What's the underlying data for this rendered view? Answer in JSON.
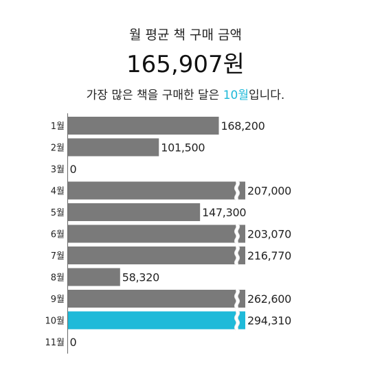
{
  "header": {
    "title": "월 평균 책 구매 금액",
    "average": "165,907원",
    "summary_before": "가장 많은 책을 구매한 달은 ",
    "summary_highlight": "10월",
    "summary_after": "입니다."
  },
  "colors": {
    "bar": "#7a7a7a",
    "highlight": "#1fbad9",
    "axis": "#666666",
    "text": "#222222"
  },
  "chart_data": {
    "type": "bar",
    "orientation": "horizontal",
    "categories": [
      "1월",
      "2월",
      "3월",
      "4월",
      "5월",
      "6월",
      "7월",
      "8월",
      "9월",
      "10월",
      "11월"
    ],
    "values": [
      168200,
      101500,
      0,
      207000,
      147300,
      203070,
      216770,
      58320,
      262600,
      294310,
      0
    ],
    "value_labels": [
      "168,200",
      "101,500",
      "0",
      "207,000",
      "147,300",
      "203,070",
      "216,770",
      "58,320",
      "262,600",
      "294,310",
      "0"
    ],
    "axis_break": true,
    "broken_bars": [
      "4월",
      "6월",
      "7월",
      "9월",
      "10월"
    ],
    "highlight_category": "10월",
    "title": "",
    "xlabel": "",
    "ylabel": "",
    "grid": false
  }
}
